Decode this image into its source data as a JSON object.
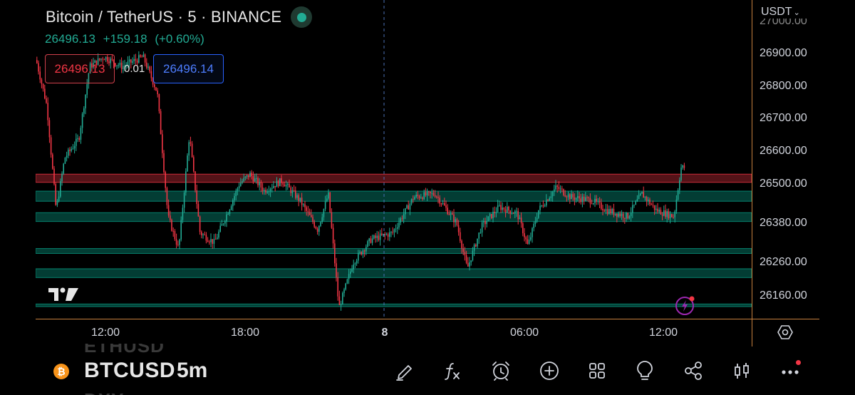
{
  "header": {
    "title": "Bitcoin / TetherUS · 5 · BINANCE",
    "last_price": "26496.13",
    "change": "+159.18",
    "change_pct": "(+0.60%)",
    "sell_price": "26496.13",
    "spread": "0.01",
    "buy_price": "26496.14"
  },
  "price_axis": {
    "currency": "USDT",
    "labels": [
      "26900.00",
      "26800.00",
      "26700.00",
      "26600.00",
      "26500.00",
      "26380.00",
      "26260.00",
      "26160.00"
    ]
  },
  "time_axis": {
    "labels": [
      "12:00",
      "18:00",
      "8",
      "06:00",
      "12:00"
    ]
  },
  "zones": [
    {
      "type": "resistance",
      "from": 26505,
      "to": 26530,
      "color": "#f23645"
    },
    {
      "type": "support",
      "from": 26447,
      "to": 26478,
      "color": "#089981"
    },
    {
      "type": "support",
      "from": 26385,
      "to": 26412,
      "color": "#089981"
    },
    {
      "type": "support",
      "from": 26287,
      "to": 26302,
      "color": "#089981"
    },
    {
      "type": "support",
      "from": 26213,
      "to": 26240,
      "color": "#089981"
    },
    {
      "type": "support",
      "from": 26124,
      "to": 26132,
      "color": "#089981"
    }
  ],
  "colors": {
    "up": "#22ab94",
    "down": "#f23645",
    "crosshair": "#4a6fb5",
    "axis_border": "#c8813e"
  },
  "bottom_bar": {
    "ghost_prev": "ETHUSD",
    "symbol": "BTCUSD",
    "interval": "5m",
    "ghost_next": "DXY",
    "tools": [
      "draw-icon",
      "indicators-icon",
      "alert-icon",
      "add-icon",
      "layout-icon",
      "ideas-icon",
      "share-icon",
      "candles-icon",
      "more-icon"
    ]
  }
}
